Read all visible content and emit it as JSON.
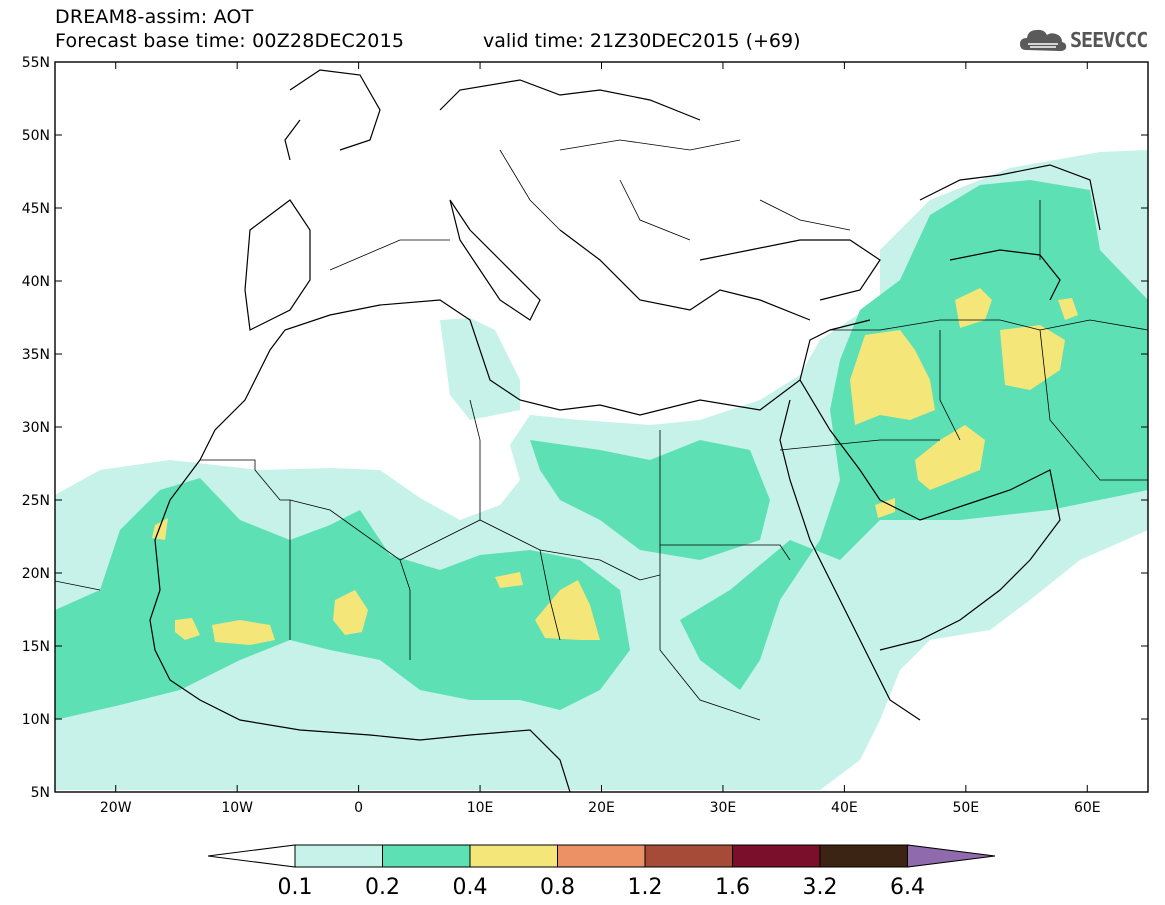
{
  "header": {
    "title": "DREAM8-assim: AOT",
    "base_time": "Forecast base time: 00Z28DEC2015",
    "valid_time": "valid time: 21Z30DEC2015 (+69)"
  },
  "logo": {
    "text": "SEEVCCC",
    "icon": "cloud-icon"
  },
  "map": {
    "lon_range": [
      -25,
      65
    ],
    "lat_range": [
      5,
      55
    ],
    "x_ticks": [
      {
        "lon": -20,
        "label": "20W"
      },
      {
        "lon": -10,
        "label": "10W"
      },
      {
        "lon": 0,
        "label": "0"
      },
      {
        "lon": 10,
        "label": "10E"
      },
      {
        "lon": 20,
        "label": "20E"
      },
      {
        "lon": 30,
        "label": "30E"
      },
      {
        "lon": 40,
        "label": "40E"
      },
      {
        "lon": 50,
        "label": "50E"
      },
      {
        "lon": 60,
        "label": "60E"
      }
    ],
    "y_ticks": [
      {
        "lat": 55,
        "label": "55N"
      },
      {
        "lat": 50,
        "label": "50N"
      },
      {
        "lat": 45,
        "label": "45N"
      },
      {
        "lat": 40,
        "label": "40N"
      },
      {
        "lat": 35,
        "label": "35N"
      },
      {
        "lat": 30,
        "label": "30N"
      },
      {
        "lat": 25,
        "label": "25N"
      },
      {
        "lat": 20,
        "label": "20N"
      },
      {
        "lat": 15,
        "label": "15N"
      },
      {
        "lat": 10,
        "label": "10N"
      },
      {
        "lat": 5,
        "label": "5N"
      }
    ]
  },
  "colorbar": {
    "levels": [
      "0.1",
      "0.2",
      "0.4",
      "0.8",
      "1.2",
      "1.6",
      "3.2",
      "6.4"
    ],
    "colors": [
      "#ffffff",
      "#c6f2ea",
      "#5de0b4",
      "#f5e679",
      "#ec9166",
      "#a64b38",
      "#7a0f2b",
      "#3b2414",
      "#8f6bad"
    ]
  }
}
